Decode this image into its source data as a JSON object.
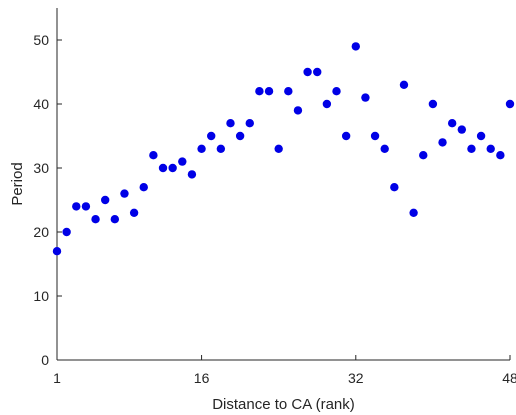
{
  "chart_data": {
    "type": "scatter",
    "title": "",
    "xlabel": "Distance to CA (rank)",
    "ylabel": "Period",
    "xlim": [
      1,
      48
    ],
    "ylim": [
      0,
      55
    ],
    "xticks": [
      1,
      16,
      32,
      48
    ],
    "yticks": [
      0,
      10,
      20,
      30,
      40,
      50
    ],
    "grid": false,
    "marker_color": "#0000e6",
    "series": [
      {
        "x": [
          1,
          2,
          3,
          4,
          5,
          6,
          7,
          8,
          9,
          10,
          11,
          12,
          13,
          14,
          15,
          16,
          17,
          18,
          19,
          20,
          21,
          22,
          23,
          24,
          25,
          26,
          27,
          28,
          29,
          30,
          31,
          32,
          33,
          34,
          35,
          36,
          37,
          38,
          39,
          40,
          41,
          42,
          43,
          44,
          45,
          46,
          47,
          48
        ],
        "y": [
          17,
          20,
          24,
          24,
          22,
          25,
          22,
          26,
          23,
          27,
          32,
          30,
          30,
          31,
          29,
          33,
          35,
          33,
          37,
          35,
          37,
          42,
          42,
          33,
          42,
          39,
          45,
          45,
          40,
          42,
          35,
          49,
          41,
          35,
          33,
          27,
          43,
          23,
          32,
          40,
          34,
          37,
          36,
          33,
          35,
          33,
          32,
          40
        ]
      }
    ]
  }
}
